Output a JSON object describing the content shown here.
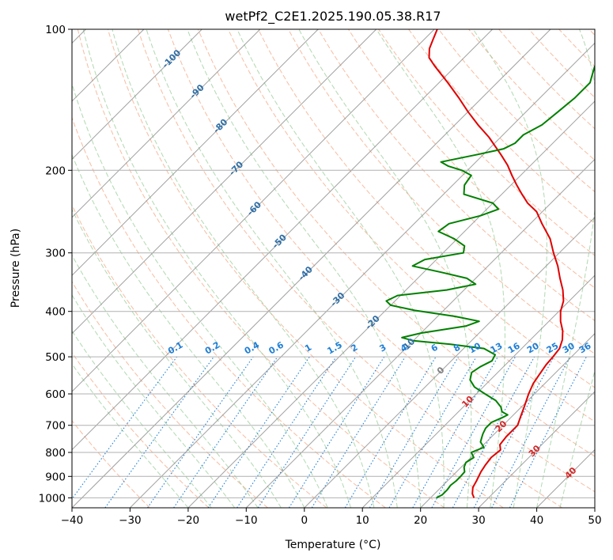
{
  "chart_data": {
    "type": "line",
    "subtype": "skew-T log-P diagram",
    "title": "wetPf2_C2E1.2025.190.05.38.R17",
    "xlabel": "Temperature (°C)",
    "ylabel": "Pressure (hPa)",
    "xlim": [
      -40,
      50
    ],
    "ylim": [
      1050,
      100
    ],
    "y_scale": "log",
    "grid": true,
    "xticks": [
      "−40",
      "−30",
      "−20",
      "−10",
      "0",
      "10",
      "20",
      "30",
      "40",
      "50"
    ],
    "yticks": [
      "100",
      "200",
      "300",
      "400",
      "500",
      "600",
      "700",
      "800",
      "900",
      "1000"
    ],
    "skew_isotherm_labels": [
      {
        "t": -100,
        "p": 115,
        "text": "-100"
      },
      {
        "t": -90,
        "p": 135,
        "text": "-90"
      },
      {
        "t": -80,
        "p": 160,
        "text": "-80"
      },
      {
        "t": -70,
        "p": 197,
        "text": "-70"
      },
      {
        "t": -60,
        "p": 240,
        "text": "-60"
      },
      {
        "t": -50,
        "p": 282,
        "text": "-50"
      },
      {
        "t": -40,
        "p": 330,
        "text": "-40"
      },
      {
        "t": -30,
        "p": 375,
        "text": "-30"
      },
      {
        "t": -20,
        "p": 420,
        "text": "-20"
      },
      {
        "t": -10,
        "p": 470,
        "text": "-10"
      },
      {
        "t": 0,
        "p": 532,
        "text": "0"
      },
      {
        "t": 10,
        "p": 620,
        "text": "10"
      },
      {
        "t": 20,
        "p": 700,
        "text": "20"
      },
      {
        "t": 30,
        "p": 790,
        "text": "30"
      },
      {
        "t": 40,
        "p": 880,
        "text": "40"
      }
    ],
    "mixing_ratio_labels": [
      "0.1",
      "0.2",
      "0.4",
      "0.6",
      "1",
      "1.5",
      "2",
      "3",
      "4",
      "6",
      "8",
      "10",
      "13",
      "16",
      "20",
      "25",
      "30",
      "36"
    ],
    "series": [
      {
        "color": "#e00000",
        "points": [
          [
            1000,
            27.5
          ],
          [
            980,
            26.5
          ],
          [
            950,
            25.5
          ],
          [
            920,
            25.0
          ],
          [
            880,
            24.2
          ],
          [
            850,
            23.8
          ],
          [
            820,
            23.5
          ],
          [
            790,
            23.8
          ],
          [
            770,
            22.8
          ],
          [
            740,
            22.5
          ],
          [
            700,
            22.5
          ],
          [
            670,
            21.5
          ],
          [
            640,
            20.5
          ],
          [
            600,
            19.0
          ],
          [
            570,
            18.0
          ],
          [
            545,
            17.5
          ],
          [
            520,
            17.0
          ],
          [
            500,
            16.8
          ],
          [
            480,
            16.5
          ],
          [
            460,
            15.5
          ],
          [
            440,
            14.0
          ],
          [
            420,
            12.0
          ],
          [
            400,
            10.3
          ],
          [
            380,
            9.0
          ],
          [
            360,
            7.0
          ],
          [
            340,
            4.5
          ],
          [
            320,
            2.0
          ],
          [
            300,
            -1.0
          ],
          [
            280,
            -4.0
          ],
          [
            260,
            -8.0
          ],
          [
            245,
            -11.0
          ],
          [
            235,
            -14.0
          ],
          [
            225,
            -16.5
          ],
          [
            215,
            -19.0
          ],
          [
            205,
            -21.5
          ],
          [
            195,
            -24.0
          ],
          [
            185,
            -27.0
          ],
          [
            170,
            -32.0
          ],
          [
            160,
            -36.0
          ],
          [
            150,
            -40.0
          ],
          [
            140,
            -44.0
          ],
          [
            130,
            -48.5
          ],
          [
            120,
            -53.5
          ],
          [
            115,
            -56.0
          ],
          [
            110,
            -57.5
          ],
          [
            105,
            -58.5
          ],
          [
            100,
            -59.5
          ]
        ]
      },
      {
        "color": "#008000",
        "points": [
          [
            1000,
            21.0
          ],
          [
            985,
            21.5
          ],
          [
            960,
            21.5
          ],
          [
            940,
            21.3
          ],
          [
            920,
            21.5
          ],
          [
            900,
            21.5
          ],
          [
            880,
            21.4
          ],
          [
            860,
            20.5
          ],
          [
            840,
            20.0
          ],
          [
            820,
            20.5
          ],
          [
            800,
            19.2
          ],
          [
            780,
            20.5
          ],
          [
            760,
            19.0
          ],
          [
            745,
            18.5
          ],
          [
            730,
            18.0
          ],
          [
            710,
            17.5
          ],
          [
            690,
            17.5
          ],
          [
            675,
            18.5
          ],
          [
            665,
            19.0
          ],
          [
            655,
            17.5
          ],
          [
            640,
            16.5
          ],
          [
            620,
            14.5
          ],
          [
            600,
            11.5
          ],
          [
            580,
            8.5
          ],
          [
            560,
            6.5
          ],
          [
            540,
            5.5
          ],
          [
            525,
            6.0
          ],
          [
            510,
            7.0
          ],
          [
            495,
            6.5
          ],
          [
            480,
            3.5
          ],
          [
            470,
            -3.0
          ],
          [
            462,
            -10.0
          ],
          [
            455,
            -12.5
          ],
          [
            445,
            -10.0
          ],
          [
            430,
            -3.5
          ],
          [
            420,
            -2.0
          ],
          [
            410,
            -7.0
          ],
          [
            398,
            -15.0
          ],
          [
            388,
            -20.0
          ],
          [
            380,
            -21.5
          ],
          [
            370,
            -20.5
          ],
          [
            360,
            -13.0
          ],
          [
            350,
            -9.0
          ],
          [
            340,
            -11.5
          ],
          [
            330,
            -17.0
          ],
          [
            320,
            -23.0
          ],
          [
            310,
            -22.0
          ],
          [
            300,
            -16.5
          ],
          [
            290,
            -17.5
          ],
          [
            280,
            -20.5
          ],
          [
            270,
            -24.5
          ],
          [
            260,
            -24.0
          ],
          [
            250,
            -20.0
          ],
          [
            242,
            -18.0
          ],
          [
            235,
            -20.0
          ],
          [
            225,
            -26.5
          ],
          [
            215,
            -28.0
          ],
          [
            205,
            -28.5
          ],
          [
            200,
            -31.0
          ],
          [
            196,
            -34.0
          ],
          [
            192,
            -36.0
          ],
          [
            185,
            -31.0
          ],
          [
            180,
            -27.5
          ],
          [
            175,
            -26.5
          ],
          [
            168,
            -26.5
          ],
          [
            160,
            -25.0
          ],
          [
            150,
            -24.5
          ],
          [
            140,
            -24.0
          ],
          [
            130,
            -24.0
          ],
          [
            125,
            -25.0
          ],
          [
            120,
            -26.0
          ],
          [
            115,
            -26.5
          ],
          [
            110,
            -27.5
          ],
          [
            105,
            -27.0
          ],
          [
            100,
            -27.5
          ]
        ]
      }
    ]
  }
}
